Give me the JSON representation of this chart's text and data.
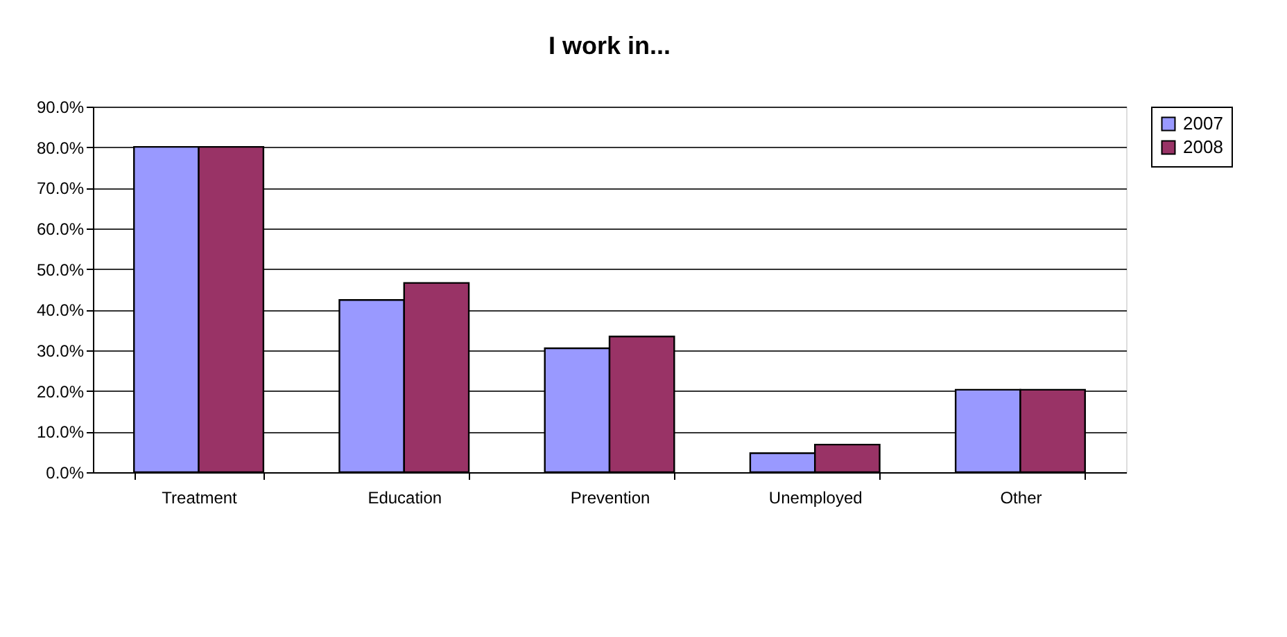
{
  "chart_data": {
    "type": "bar",
    "title": "I work in...",
    "categories": [
      "Treatment",
      "Education",
      "Prevention",
      "Unemployed",
      "Other"
    ],
    "series": [
      {
        "name": "2007",
        "color": "#9999ff",
        "values": [
          80.1,
          42.4,
          30.5,
          4.7,
          20.3
        ]
      },
      {
        "name": "2008",
        "color": "#993366",
        "values": [
          80.1,
          46.6,
          33.4,
          6.8,
          20.3
        ]
      }
    ],
    "ylim": [
      0,
      90
    ],
    "yticks": [
      {
        "value": 0,
        "label": "0.0%"
      },
      {
        "value": 10,
        "label": "10.0%"
      },
      {
        "value": 20,
        "label": "20.0%"
      },
      {
        "value": 30,
        "label": "30.0%"
      },
      {
        "value": 40,
        "label": "40.0%"
      },
      {
        "value": 50,
        "label": "50.0%"
      },
      {
        "value": 60,
        "label": "60.0%"
      },
      {
        "value": 70,
        "label": "70.0%"
      },
      {
        "value": 80,
        "label": "80.0%"
      },
      {
        "value": 90,
        "label": "90.0%"
      }
    ],
    "grid": "y",
    "legend": "right"
  }
}
